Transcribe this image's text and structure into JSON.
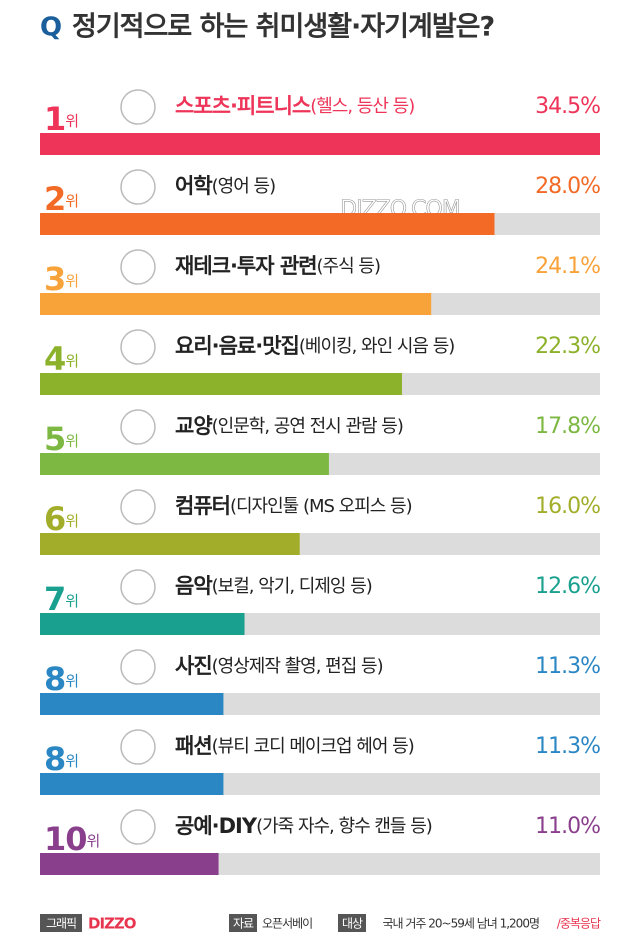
{
  "chart_data": {
    "type": "bar",
    "orientation": "horizontal",
    "title_prefix": "Q",
    "title": "정기적으로 하는 취미생활·자기계발은?",
    "watermark": "DIZZO.COM",
    "rank_suffix": "위",
    "ranks": [
      "1",
      "2",
      "3",
      "4",
      "5",
      "6",
      "7",
      "8",
      "8",
      "10"
    ],
    "categories": [
      "스포츠·피트니스",
      "어학",
      "재테크·투자 관련",
      "요리·음료·맛집",
      "교양",
      "컴퓨터",
      "음악",
      "사진",
      "패션",
      "공예·DIY"
    ],
    "details": [
      "(헬스, 등산 등)",
      "(영어 등)",
      "(주식 등)",
      "(베이킹, 와인 시음 등)",
      "(인문학, 공연 전시 관람 등)",
      "(디자인툴 (MS 오피스 등)",
      "(보컬, 악기, 디제잉 등)",
      "(영상제작 촬영, 편집 등)",
      "(뷰티 코디 메이크업 헤어 등)",
      "(가죽 자수, 향수 캔들 등)"
    ],
    "values": [
      34.5,
      28.0,
      24.1,
      22.3,
      17.8,
      16.0,
      12.6,
      11.3,
      11.3,
      11.0
    ],
    "value_labels": [
      "34.5%",
      "28.0%",
      "24.1%",
      "22.3%",
      "17.8%",
      "16.0%",
      "12.6%",
      "11.3%",
      "11.3%",
      "11.0%"
    ],
    "colors": [
      "#ee3458",
      "#f26a25",
      "#f8a23a",
      "#8cb12a",
      "#7db843",
      "#a2ae2a",
      "#19a08e",
      "#2a87c4",
      "#2a87c4",
      "#8a3f8c"
    ],
    "highlight": 0,
    "track_color": "#dcdcdc",
    "xlim": [
      0,
      34.5
    ],
    "footer": {
      "graphic": "그래픽",
      "brand": "DIZZO",
      "source_label": "자료",
      "source": "오픈서베이",
      "target_label": "대상",
      "target": "국내 거주 20~59세 남녀 1,200명",
      "note": "/중복응답"
    }
  }
}
